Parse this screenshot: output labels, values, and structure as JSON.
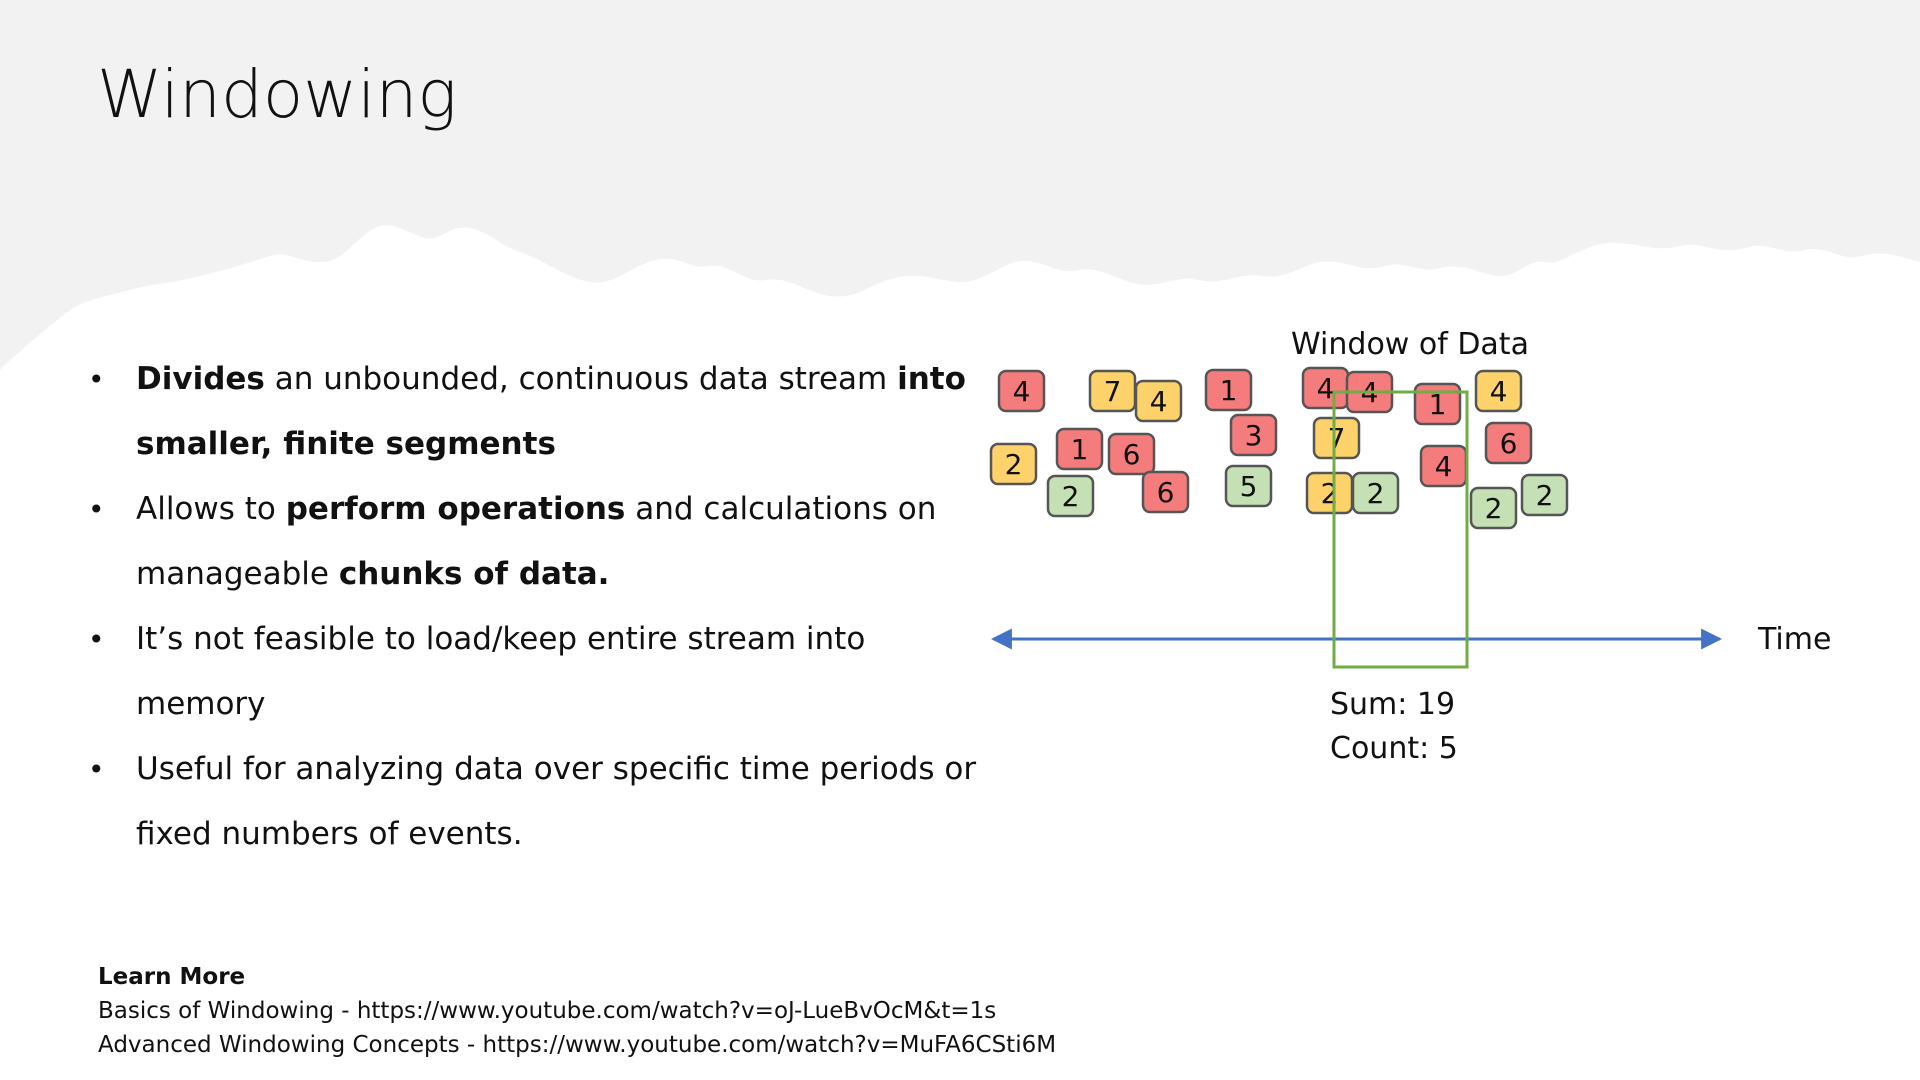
{
  "slide": {
    "title": "Windowing",
    "bullets": [
      {
        "segments": [
          {
            "t": "Divides",
            "b": true
          },
          {
            "t": " an unbounded, continuous data stream ",
            "b": false
          },
          {
            "t": "into smaller, finite segments",
            "b": true
          }
        ]
      },
      {
        "segments": [
          {
            "t": "Allows to ",
            "b": false
          },
          {
            "t": "perform operations",
            "b": true
          },
          {
            "t": " and calculations on manageable ",
            "b": false
          },
          {
            "t": "chunks of data.",
            "b": true
          }
        ]
      },
      {
        "segments": [
          {
            "t": "It’s not feasible to load/keep entire stream into memory",
            "b": false
          }
        ]
      },
      {
        "segments": [
          {
            "t": "Useful for analyzing data over specific time periods or fixed numbers of events.",
            "b": false
          }
        ]
      }
    ],
    "learn_more": {
      "heading": "Learn More",
      "links": [
        "Basics of Windowing - https://www.youtube.com/watch?v=oJ-LueBvOcM&t=1s",
        "Advanced Windowing Concepts - https://www.youtube.com/watch?v=MuFA6CSti6M"
      ]
    }
  },
  "diagram": {
    "window_label": "Window of Data",
    "axis_label": "Time",
    "sum_text": "Sum: 19",
    "count_text": "Count: 5",
    "colors": {
      "red": "#f47c7c",
      "yellow": "#fdd26a",
      "green": "#c5e0b4",
      "window": "#70ad47",
      "axis": "#4472c4"
    },
    "events": [
      {
        "v": "4",
        "c": "red"
      },
      {
        "v": "2",
        "c": "yellow"
      },
      {
        "v": "7",
        "c": "yellow"
      },
      {
        "v": "4",
        "c": "yellow"
      },
      {
        "v": "1",
        "c": "red"
      },
      {
        "v": "2",
        "c": "green"
      },
      {
        "v": "6",
        "c": "red"
      },
      {
        "v": "6",
        "c": "red"
      },
      {
        "v": "1",
        "c": "red"
      },
      {
        "v": "3",
        "c": "red"
      },
      {
        "v": "5",
        "c": "green"
      },
      {
        "v": "4",
        "c": "red"
      },
      {
        "v": "4",
        "c": "red"
      },
      {
        "v": "7",
        "c": "yellow"
      },
      {
        "v": "2",
        "c": "yellow"
      },
      {
        "v": "2",
        "c": "green"
      },
      {
        "v": "1",
        "c": "red"
      },
      {
        "v": "4",
        "c": "red"
      },
      {
        "v": "4",
        "c": "yellow"
      },
      {
        "v": "6",
        "c": "red"
      },
      {
        "v": "2",
        "c": "green"
      },
      {
        "v": "2",
        "c": "green"
      }
    ]
  }
}
